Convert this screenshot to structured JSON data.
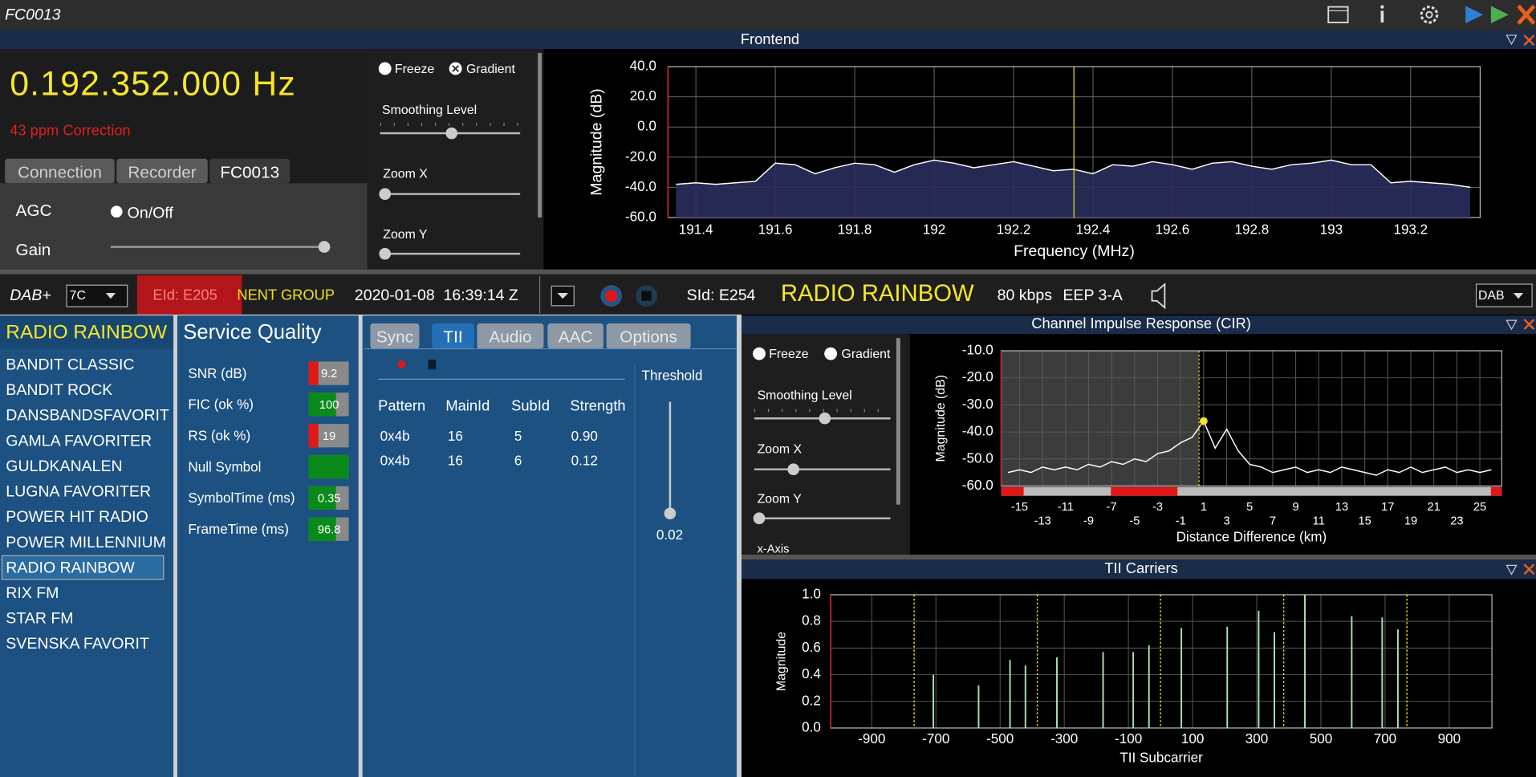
{
  "window": {
    "title": "FC0013"
  },
  "frontend": {
    "frequency": "0.192.352.000 Hz",
    "correction": "43 ppm Correction",
    "tabs": [
      "Connection",
      "Recorder",
      "FC0013"
    ],
    "active_tab": 2,
    "agc": "AGC",
    "agc_toggle": "On/Off",
    "gain": "Gain",
    "controls": {
      "freeze": "Freeze",
      "gradient": "Gradient",
      "smoothing": "Smoothing Level",
      "zoom_x": "Zoom X",
      "zoom_y": "Zoom Y"
    }
  },
  "status_bar": {
    "mode": "DAB+",
    "channel": "7C",
    "eid": "EId: E205",
    "ensemble": "NENT GROUP",
    "datetime": "2020-01-08  16:39:14 Z",
    "sid": "SId: E254",
    "service": "RADIO RAINBOW",
    "bitrate": "80 kbps",
    "protection": "EEP 3-A",
    "standard": "DAB"
  },
  "services": {
    "title": "RADIO RAINBOW",
    "items": [
      "BANDIT CLASSIC",
      "BANDIT ROCK",
      "DANSBANDSFAVORIT",
      "GAMLA FAVORITER",
      "GULDKANALEN",
      "LUGNA FAVORITER",
      "POWER HIT RADIO",
      "POWER MILLENNIUM",
      "RADIO RAINBOW",
      "RIX FM",
      "STAR FM",
      "SVENSKA FAVORIT"
    ],
    "selected": 8
  },
  "service_quality": {
    "title": "Service Quality",
    "rows": [
      {
        "label": "SNR (dB)",
        "value": 9.2,
        "color": "#e01818"
      },
      {
        "label": "FIC (ok %)",
        "value": 100,
        "color": "#0a8a1a"
      },
      {
        "label": "RS (ok %)",
        "value": 19,
        "color": "#e01818"
      },
      {
        "label": "Null Symbol",
        "value": null,
        "color": "#0a8a1a"
      },
      {
        "label": "SymbolTime (ms)",
        "value": 0.35,
        "color": "#0a8a1a"
      },
      {
        "label": "FrameTime (ms)",
        "value": 96.8,
        "color": "#0a8a1a"
      }
    ]
  },
  "tii_panel": {
    "tabs": [
      "Sync",
      "TII",
      "Audio",
      "AAC",
      "Options"
    ],
    "active_tab": 1,
    "threshold": "Threshold",
    "threshold_value": "0.02",
    "columns": [
      "Pattern",
      "MainId",
      "SubId",
      "Strength"
    ],
    "rows": [
      [
        "0x4b",
        "16",
        "5",
        "0.90"
      ],
      [
        "0x4b",
        "16",
        "6",
        "0.12"
      ]
    ]
  },
  "cir_controls": {
    "freeze": "Freeze",
    "gradient": "Gradient",
    "smoothing": "Smoothing Level",
    "zoom_x": "Zoom X",
    "zoom_y": "Zoom Y",
    "x_axis": "x-Axis"
  },
  "chart_data": [
    {
      "type": "line",
      "title": "Frontend",
      "xlabel": "Frequency (MHz)",
      "ylabel": "Magnitude (dB)",
      "xlim": [
        191.33,
        193.375
      ],
      "ylim": [
        -60,
        40
      ],
      "xticks": [
        191.4,
        191.6,
        191.8,
        192,
        192.2,
        192.4,
        192.6,
        192.8,
        193,
        193.2
      ],
      "yticks": [
        {
          "value": 40,
          "label": "40.0"
        },
        {
          "value": 20,
          "label": "20.0"
        },
        {
          "value": 0,
          "label": "0.0"
        },
        {
          "value": -20,
          "label": "-20.0"
        },
        {
          "value": -40,
          "label": "-40.0"
        },
        {
          "value": -60,
          "label": "-60.0"
        }
      ],
      "grid": true,
      "marker_x": 192.352,
      "series": [
        {
          "color": "#ffffff",
          "fill": "#2a2d5c",
          "x": [
            191.35,
            191.4,
            191.45,
            191.5,
            191.55,
            191.6,
            191.65,
            191.7,
            191.75,
            191.8,
            191.85,
            191.9,
            191.95,
            192.0,
            192.05,
            192.1,
            192.15,
            192.2,
            192.25,
            192.3,
            192.35,
            192.4,
            192.45,
            192.5,
            192.55,
            192.6,
            192.65,
            192.7,
            192.75,
            192.8,
            192.85,
            192.9,
            192.95,
            193.0,
            193.05,
            193.1,
            193.15,
            193.2,
            193.25,
            193.3,
            193.35
          ],
          "values": [
            -38,
            -37,
            -38,
            -37,
            -36,
            -24,
            -25,
            -31,
            -27,
            -24,
            -25,
            -30,
            -25,
            -22,
            -24,
            -27,
            -25,
            -23,
            -26,
            -29,
            -28,
            -31,
            -25,
            -26,
            -23,
            -25,
            -28,
            -24,
            -23,
            -26,
            -28,
            -25,
            -24,
            -22,
            -25,
            -25,
            -37,
            -36,
            -37,
            -38,
            -40
          ]
        }
      ]
    },
    {
      "type": "line",
      "title": "Channel Impulse Response (CIR)",
      "xlabel": "Distance Difference (km)",
      "ylabel": "Magnitude (dB)",
      "xlim": [
        -16.6,
        26.9
      ],
      "ylim": [
        -60,
        -10
      ],
      "xticks": [
        -15,
        -13,
        -11,
        -9,
        -7,
        -5,
        -3,
        -1,
        1,
        3,
        5,
        7,
        9,
        11,
        13,
        15,
        17,
        19,
        21,
        23,
        25
      ],
      "yticks": [
        {
          "value": -10,
          "label": "-10.0"
        },
        {
          "value": -20,
          "label": "-20.0"
        },
        {
          "value": -30,
          "label": "-30.0"
        },
        {
          "value": -40,
          "label": "-40.0"
        },
        {
          "value": -50,
          "label": "-50.0"
        },
        {
          "value": -60,
          "label": "-60.0"
        }
      ],
      "grid": true,
      "window": [
        -16.6,
        0.6
      ],
      "series": [
        {
          "color": "#ffffff",
          "x": [
            -16,
            -15,
            -14,
            -13,
            -12,
            -11,
            -10,
            -9,
            -8,
            -7,
            -6,
            -5,
            -4,
            -3,
            -2,
            -1,
            0,
            1,
            2,
            3,
            4,
            5,
            6,
            7,
            8,
            9,
            10,
            11,
            12,
            13,
            14,
            15,
            16,
            17,
            18,
            19,
            20,
            21,
            22,
            23,
            24,
            25,
            26
          ],
          "values": [
            -55,
            -54,
            -55,
            -53,
            -54,
            -53,
            -54,
            -52,
            -53,
            -51,
            -52,
            -50,
            -51,
            -48,
            -47,
            -44,
            -42,
            -36,
            -46,
            -39,
            -47,
            -52,
            -53,
            -55,
            -54,
            -53,
            -55,
            -54,
            -55,
            -53,
            -54,
            -55,
            -56,
            -54,
            -55,
            -53,
            -55,
            -54,
            -53,
            -55,
            -54,
            -55,
            -54
          ]
        }
      ]
    },
    {
      "type": "bar",
      "title": "TII Carriers",
      "xlabel": "TII Subcarrier",
      "ylabel": "Magnitude",
      "xlim": [
        -1028,
        1033
      ],
      "ylim": [
        0,
        1
      ],
      "xticks": [
        -900,
        -700,
        -500,
        -300,
        -100,
        100,
        300,
        500,
        700,
        900
      ],
      "yticks": [
        {
          "value": 0,
          "label": "0.0"
        },
        0.2,
        0.4,
        0.6,
        0.8,
        {
          "value": 1,
          "label": "1.0"
        }
      ],
      "grid": true,
      "markers_x": [
        -768,
        -384,
        0,
        384,
        768
      ],
      "series": [
        {
          "color": "#a8e0b0",
          "x": [
            -708,
            -567,
            -469,
            -421,
            -323,
            -179,
            -85,
            -36,
            65,
            208,
            306,
            355,
            450,
            596,
            691,
            740
          ],
          "values": [
            0.4,
            0.32,
            0.51,
            0.47,
            0.53,
            0.57,
            0.57,
            0.62,
            0.75,
            0.76,
            0.88,
            0.72,
            1.0,
            0.84,
            0.83,
            0.74
          ]
        }
      ]
    }
  ]
}
